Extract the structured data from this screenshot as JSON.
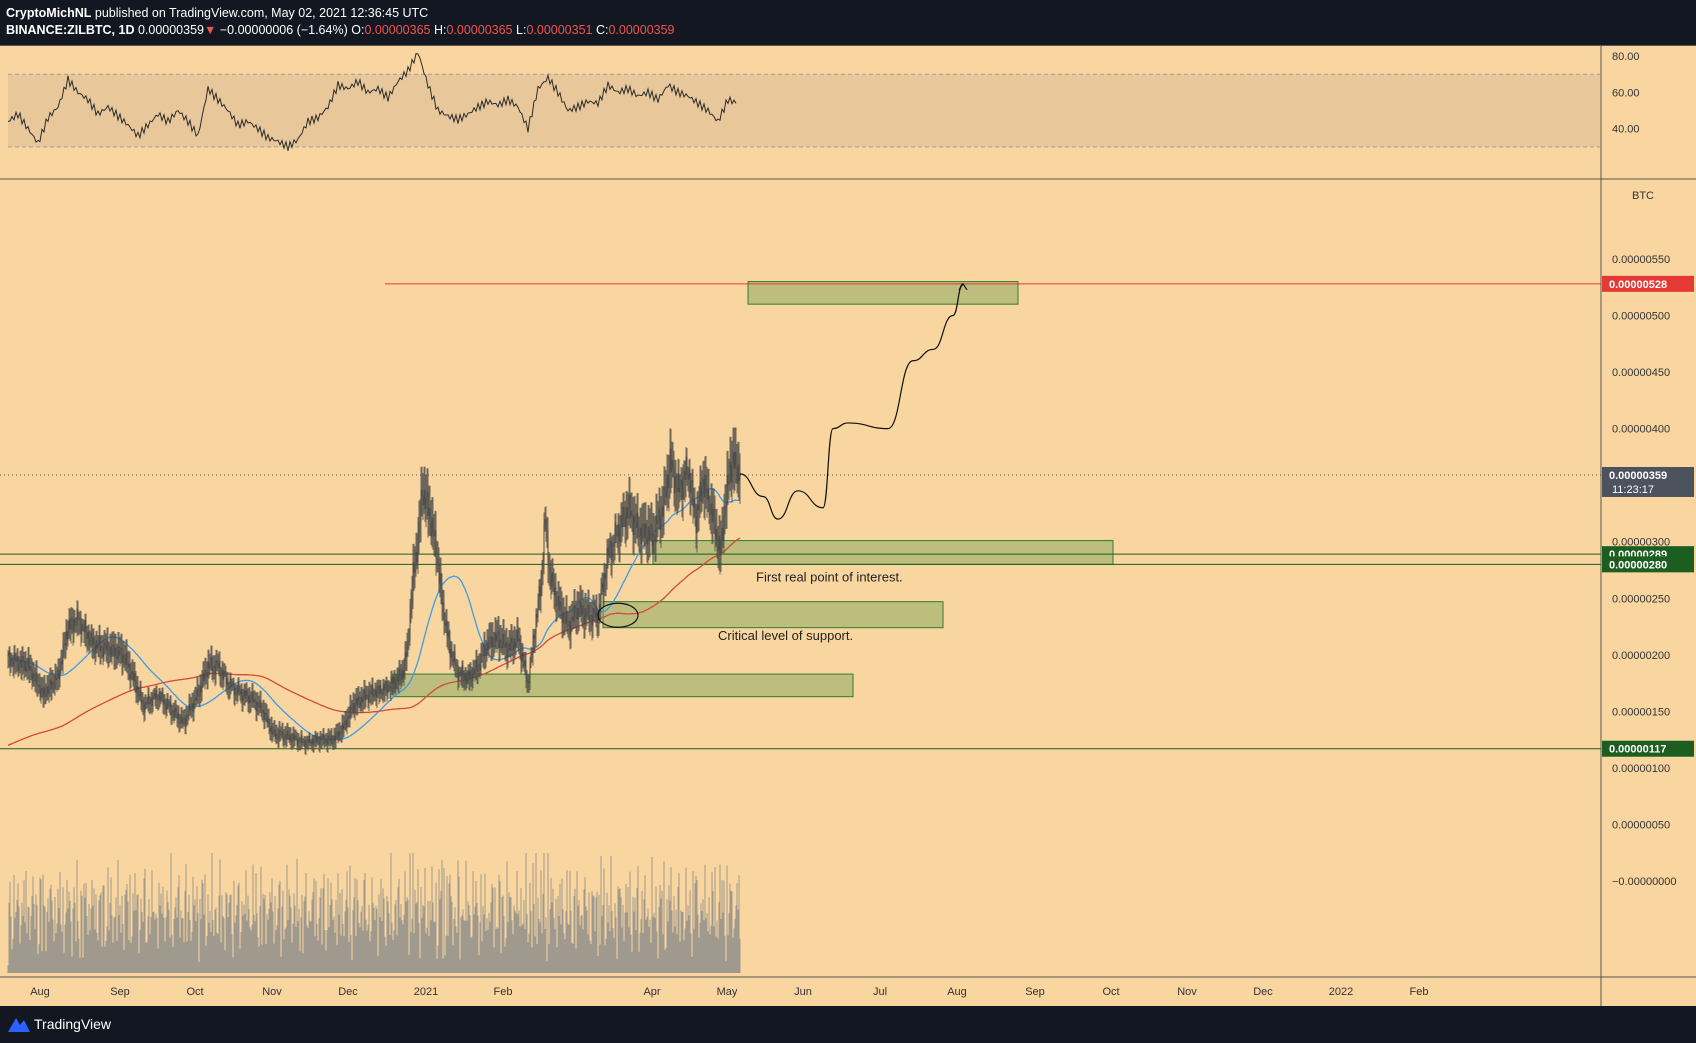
{
  "header": {
    "author": "CryptoMichNL",
    "published": "published on TradingView.com, May 02, 2021 12:36:45 UTC",
    "symbol": "BINANCE:ZILBTC, 1D",
    "last": "0.00000359",
    "arrow": "▼",
    "change": "−0.00000006 (−1.64%)",
    "o_label": "O:",
    "o_value": "0.00000365",
    "h_label": "H:",
    "h_value": "0.00000365",
    "l_label": "L:",
    "l_value": "0.00000351",
    "c_label": "C:",
    "c_value": "0.00000359"
  },
  "footer": {
    "brand": "TradingView"
  },
  "colors": {
    "background": "#f9d6a0",
    "frame": "#131722",
    "rsi_band": "#e8c89a",
    "candle": "#4a4a4a",
    "ma_fast": "#3d9be9",
    "ma_slow": "#d24a3a",
    "zone_fill": "#b3b877",
    "zone_stroke": "#2e7d32",
    "target_line": "#e53935"
  },
  "chart_data": {
    "type": "candlestick",
    "symbol": "BINANCE:ZILBTC",
    "timeframe": "1D",
    "price_unit": "BTC",
    "x_axis_labels": [
      "Aug",
      "Sep",
      "Oct",
      "Nov",
      "Dec",
      "2021",
      "Feb",
      "Apr",
      "May",
      "Jun",
      "Jul",
      "Aug",
      "Sep",
      "Oct",
      "Nov",
      "Dec",
      "2022",
      "Feb"
    ],
    "y_axis_labels": [
      "0.00000550",
      "0.00000500",
      "0.00000450",
      "0.00000400",
      "0.00000300",
      "0.00000250",
      "0.00000200",
      "0.00000150",
      "0.00000100",
      "0.00000050",
      "−0.00000000"
    ],
    "y_range": [
      -3e-07,
      5.8e-06
    ],
    "rsi": {
      "axis_labels": [
        "80.00",
        "60.00",
        "40.00"
      ],
      "range": [
        20,
        85
      ],
      "band": [
        30,
        70
      ],
      "approx_path": [
        [
          0,
          44
        ],
        [
          10,
          48
        ],
        [
          20,
          40
        ],
        [
          30,
          32
        ],
        [
          40,
          46
        ],
        [
          50,
          52
        ],
        [
          60,
          67
        ],
        [
          70,
          60
        ],
        [
          80,
          56
        ],
        [
          90,
          48
        ],
        [
          100,
          52
        ],
        [
          110,
          47
        ],
        [
          120,
          42
        ],
        [
          130,
          36
        ],
        [
          140,
          42
        ],
        [
          150,
          48
        ],
        [
          160,
          44
        ],
        [
          170,
          50
        ],
        [
          180,
          44
        ],
        [
          190,
          36
        ],
        [
          200,
          62
        ],
        [
          210,
          56
        ],
        [
          220,
          50
        ],
        [
          230,
          42
        ],
        [
          240,
          44
        ],
        [
          250,
          40
        ],
        [
          260,
          35
        ],
        [
          270,
          33
        ],
        [
          280,
          30
        ],
        [
          290,
          34
        ],
        [
          300,
          44
        ],
        [
          310,
          46
        ],
        [
          320,
          52
        ],
        [
          330,
          64
        ],
        [
          340,
          62
        ],
        [
          350,
          66
        ],
        [
          360,
          60
        ],
        [
          370,
          62
        ],
        [
          380,
          57
        ],
        [
          390,
          66
        ],
        [
          400,
          72
        ],
        [
          410,
          82
        ],
        [
          420,
          64
        ],
        [
          430,
          50
        ],
        [
          440,
          47
        ],
        [
          450,
          45
        ],
        [
          460,
          48
        ],
        [
          470,
          52
        ],
        [
          480,
          55
        ],
        [
          490,
          53
        ],
        [
          500,
          56
        ],
        [
          510,
          52
        ],
        [
          520,
          40
        ],
        [
          530,
          62
        ],
        [
          540,
          68
        ],
        [
          550,
          60
        ],
        [
          560,
          50
        ],
        [
          570,
          52
        ],
        [
          580,
          55
        ],
        [
          590,
          54
        ],
        [
          600,
          64
        ],
        [
          610,
          60
        ],
        [
          620,
          62
        ],
        [
          630,
          58
        ],
        [
          640,
          60
        ],
        [
          650,
          56
        ],
        [
          660,
          64
        ],
        [
          670,
          60
        ],
        [
          680,
          58
        ],
        [
          690,
          54
        ],
        [
          700,
          50
        ],
        [
          710,
          44
        ],
        [
          720,
          56
        ],
        [
          730,
          54
        ]
      ]
    },
    "price_path": [
      [
        0,
        1.97e-06
      ],
      [
        20,
        1.9e-06
      ],
      [
        35,
        1.65e-06
      ],
      [
        50,
        1.8e-06
      ],
      [
        60,
        2.25e-06
      ],
      [
        70,
        2.32e-06
      ],
      [
        85,
        2.1e-06
      ],
      [
        100,
        2.05e-06
      ],
      [
        115,
        2e-06
      ],
      [
        125,
        1.8e-06
      ],
      [
        135,
        1.55e-06
      ],
      [
        150,
        1.65e-06
      ],
      [
        165,
        1.5e-06
      ],
      [
        175,
        1.4e-06
      ],
      [
        190,
        1.65e-06
      ],
      [
        200,
        1.9e-06
      ],
      [
        210,
        1.9e-06
      ],
      [
        220,
        1.75e-06
      ],
      [
        235,
        1.65e-06
      ],
      [
        245,
        1.6e-06
      ],
      [
        255,
        1.5e-06
      ],
      [
        265,
        1.3e-06
      ],
      [
        280,
        1.28e-06
      ],
      [
        295,
        1.23e-06
      ],
      [
        310,
        1.25e-06
      ],
      [
        325,
        1.25e-06
      ],
      [
        335,
        1.35e-06
      ],
      [
        345,
        1.55e-06
      ],
      [
        360,
        1.65e-06
      ],
      [
        375,
        1.7e-06
      ],
      [
        385,
        1.75e-06
      ],
      [
        395,
        1.85e-06
      ],
      [
        400,
        2.1e-06
      ],
      [
        405,
        2.7e-06
      ],
      [
        410,
        3e-06
      ],
      [
        414,
        3.45e-06
      ],
      [
        420,
        3.3e-06
      ],
      [
        428,
        2.95e-06
      ],
      [
        435,
        2.4e-06
      ],
      [
        442,
        2.05e-06
      ],
      [
        450,
        1.85e-06
      ],
      [
        460,
        1.8e-06
      ],
      [
        470,
        1.9e-06
      ],
      [
        480,
        2.1e-06
      ],
      [
        490,
        2.15e-06
      ],
      [
        500,
        2.05e-06
      ],
      [
        510,
        2.15e-06
      ],
      [
        520,
        1.75e-06
      ],
      [
        527,
        2.25e-06
      ],
      [
        533,
        2.65e-06
      ],
      [
        537,
        3.2e-06
      ],
      [
        542,
        2.7e-06
      ],
      [
        550,
        2.45e-06
      ],
      [
        560,
        2.25e-06
      ],
      [
        570,
        2.4e-06
      ],
      [
        580,
        2.35e-06
      ],
      [
        590,
        2.35e-06
      ],
      [
        600,
        2.9e-06
      ],
      [
        610,
        3.1e-06
      ],
      [
        620,
        3.3e-06
      ],
      [
        630,
        3.1e-06
      ],
      [
        645,
        3.05e-06
      ],
      [
        655,
        3.3e-06
      ],
      [
        662,
        3.7e-06
      ],
      [
        670,
        3.45e-06
      ],
      [
        680,
        3.65e-06
      ],
      [
        688,
        3.2e-06
      ],
      [
        695,
        3.55e-06
      ],
      [
        705,
        3.2e-06
      ],
      [
        712,
        2.9e-06
      ],
      [
        717,
        3.3e-06
      ],
      [
        722,
        3.65e-06
      ],
      [
        726,
        3.7e-06
      ],
      [
        732,
        3.59e-06
      ]
    ],
    "last_price": "0.00000359",
    "countdown": "11:23:17",
    "horizontal_lines": [
      {
        "price": 5.28e-06,
        "label": "0.00000528",
        "color": "#e53935"
      },
      {
        "price": 2.89e-06,
        "label": "0.00000289",
        "color": "#1b5e20"
      },
      {
        "price": 2.8e-06,
        "label": "0.00000280",
        "color": "#1b5e20"
      },
      {
        "price": 1.17e-06,
        "label": "0.00000117",
        "color": "#1b5e20"
      }
    ],
    "zones": [
      {
        "name": "target zone",
        "x_days": [
          740,
          1010
        ],
        "price": [
          5.1e-06,
          5.3e-06
        ]
      },
      {
        "name": "interest zone",
        "x_days": [
          645,
          1105
        ],
        "price": [
          2.8e-06,
          3.01e-06
        ]
      },
      {
        "name": "support zone",
        "x_days": [
          595,
          935
        ],
        "price": [
          2.24e-06,
          2.47e-06
        ]
      },
      {
        "name": "base zone",
        "x_days": [
          385,
          845
        ],
        "price": [
          1.63e-06,
          1.83e-06
        ]
      }
    ],
    "annotations": [
      {
        "text": "First real point of interest.",
        "x_day": 748,
        "price": 2.65e-06
      },
      {
        "text": "Critical level of support.",
        "x_day": 710,
        "price": 2.13e-06
      }
    ],
    "projection_path": [
      [
        732,
        3.6e-06
      ],
      [
        755,
        3.4e-06
      ],
      [
        770,
        3.2e-06
      ],
      [
        790,
        3.45e-06
      ],
      [
        815,
        3.3e-06
      ],
      [
        825,
        4e-06
      ],
      [
        840,
        4.05e-06
      ],
      [
        880,
        4e-06
      ],
      [
        905,
        4.6e-06
      ],
      [
        925,
        4.7e-06
      ],
      [
        945,
        5e-06
      ],
      [
        955,
        5.28e-06
      ]
    ]
  }
}
